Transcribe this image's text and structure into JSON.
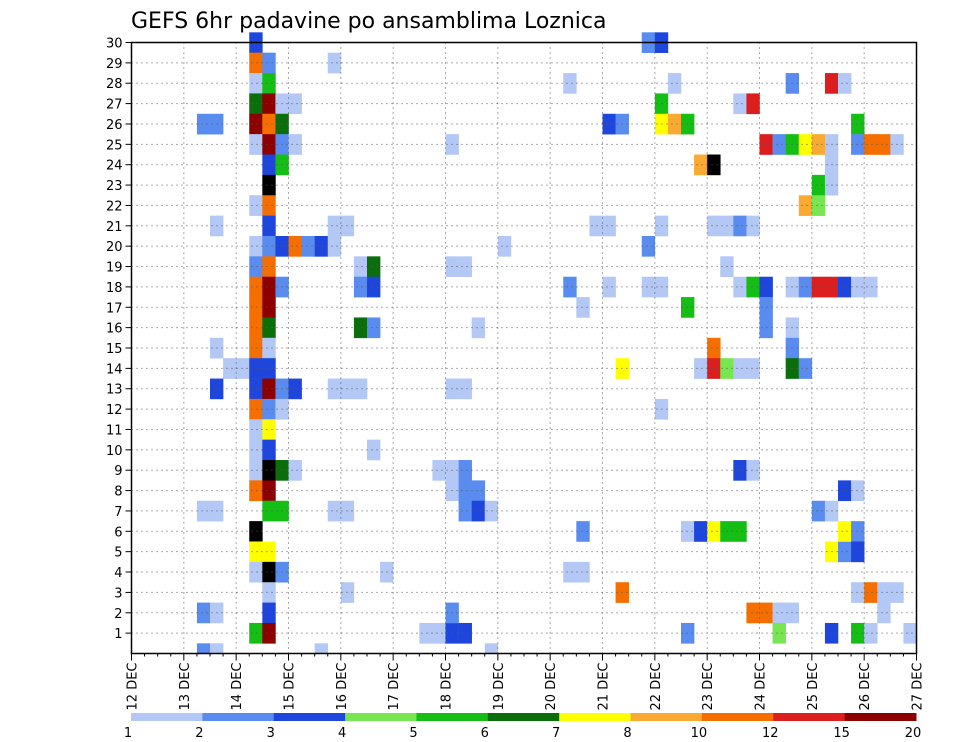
{
  "chart_data": {
    "type": "heatmap",
    "title": "GEFS 6hr padavine po ansamblima Loznica",
    "x_ticks": [
      "12 DEC",
      "13 DEC",
      "14 DEC",
      "15 DEC",
      "16 DEC",
      "17 DEC",
      "18 DEC",
      "19 DEC",
      "20 DEC",
      "21 DEC",
      "22 DEC",
      "23 DEC",
      "24 DEC",
      "25 DEC",
      "26 DEC",
      "27 DEC"
    ],
    "y_ticks": [
      "1",
      "2",
      "3",
      "4",
      "5",
      "6",
      "7",
      "8",
      "9",
      "10",
      "11",
      "12",
      "13",
      "14",
      "15",
      "16",
      "17",
      "18",
      "19",
      "20",
      "21",
      "22",
      "23",
      "24",
      "25",
      "26",
      "27",
      "28",
      "29",
      "30"
    ],
    "y_range": [
      1,
      30
    ],
    "x_range": [
      "12 DEC",
      "27 DEC"
    ],
    "grid": true,
    "time_step_hours": 6,
    "colorbar": {
      "colors": [
        "#b4c8f5",
        "#5a8cf0",
        "#1e46dc",
        "#78e650",
        "#14be14",
        "#0a6e0a",
        "#ffff00",
        "#faaa32",
        "#f56e00",
        "#dc1e1e",
        "#8c0000"
      ],
      "labels": [
        "1",
        "2",
        "3",
        "4",
        "5",
        "6",
        "7",
        "8",
        "10",
        "12",
        "15",
        "20"
      ]
    },
    "cells": [
      [
        30,
        9,
        3
      ],
      [
        29,
        9,
        9
      ],
      [
        29,
        10,
        2
      ],
      [
        29,
        15,
        1
      ],
      [
        28,
        9,
        1
      ],
      [
        28,
        10,
        5
      ],
      [
        27,
        9,
        6
      ],
      [
        27,
        10,
        11
      ],
      [
        27,
        11,
        1
      ],
      [
        27,
        12,
        1
      ],
      [
        26,
        5,
        2
      ],
      [
        26,
        6,
        2
      ],
      [
        26,
        9,
        11
      ],
      [
        26,
        10,
        9
      ],
      [
        26,
        11,
        6
      ],
      [
        25,
        9,
        1
      ],
      [
        25,
        10,
        11
      ],
      [
        25,
        11,
        2
      ],
      [
        25,
        12,
        1
      ],
      [
        24,
        10,
        3
      ],
      [
        24,
        11,
        5
      ],
      [
        23,
        10,
        12
      ],
      [
        22,
        9,
        1
      ],
      [
        22,
        10,
        9
      ],
      [
        21,
        10,
        3
      ],
      [
        20,
        9,
        1
      ],
      [
        20,
        10,
        2
      ],
      [
        20,
        11,
        3
      ],
      [
        20,
        12,
        9
      ],
      [
        19,
        9,
        2
      ],
      [
        19,
        10,
        9
      ],
      [
        18,
        9,
        9
      ],
      [
        18,
        10,
        11
      ],
      [
        18,
        11,
        2
      ],
      [
        17,
        9,
        9
      ],
      [
        17,
        10,
        11
      ],
      [
        16,
        9,
        9
      ],
      [
        16,
        10,
        6
      ],
      [
        15,
        9,
        9
      ],
      [
        15,
        10,
        1
      ],
      [
        14,
        7,
        1
      ],
      [
        14,
        8,
        1
      ],
      [
        14,
        9,
        3
      ],
      [
        14,
        10,
        3
      ],
      [
        13,
        9,
        3
      ],
      [
        13,
        10,
        11
      ],
      [
        13,
        11,
        2
      ],
      [
        13,
        12,
        3
      ],
      [
        12,
        9,
        9
      ],
      [
        12,
        10,
        2
      ],
      [
        12,
        11,
        1
      ],
      [
        11,
        9,
        1
      ],
      [
        11,
        10,
        7
      ],
      [
        10,
        9,
        1
      ],
      [
        10,
        10,
        3
      ],
      [
        9,
        9,
        1
      ],
      [
        9,
        10,
        12
      ],
      [
        9,
        11,
        6
      ],
      [
        9,
        12,
        1
      ],
      [
        8,
        9,
        9
      ],
      [
        8,
        10,
        11
      ],
      [
        7,
        10,
        5
      ],
      [
        7,
        11,
        5
      ],
      [
        6,
        9,
        12
      ],
      [
        5,
        9,
        7
      ],
      [
        5,
        10,
        7
      ],
      [
        4,
        9,
        1
      ],
      [
        4,
        10,
        12
      ],
      [
        4,
        11,
        2
      ],
      [
        3,
        10,
        1
      ],
      [
        2,
        10,
        3
      ],
      [
        1,
        9,
        5
      ],
      [
        1,
        10,
        11
      ],
      [
        28,
        41,
        1
      ],
      [
        21,
        6,
        1
      ],
      [
        15,
        6,
        1
      ],
      [
        13,
        6,
        3
      ],
      [
        7,
        5,
        1
      ],
      [
        7,
        6,
        1
      ],
      [
        2,
        5,
        2
      ],
      [
        2,
        6,
        1
      ],
      [
        0,
        5,
        2
      ],
      [
        0,
        6,
        1
      ],
      [
        0,
        14,
        1
      ],
      [
        0,
        27,
        1
      ],
      [
        20,
        13,
        2
      ],
      [
        20,
        14,
        3
      ],
      [
        20,
        15,
        1
      ],
      [
        21,
        15,
        1
      ],
      [
        21,
        16,
        1
      ],
      [
        19,
        17,
        1
      ],
      [
        19,
        18,
        6
      ],
      [
        18,
        17,
        2
      ],
      [
        18,
        18,
        3
      ],
      [
        16,
        17,
        6
      ],
      [
        16,
        18,
        2
      ],
      [
        13,
        15,
        1
      ],
      [
        13,
        16,
        1
      ],
      [
        13,
        17,
        1
      ],
      [
        10,
        18,
        1
      ],
      [
        9,
        23,
        1
      ],
      [
        9,
        24,
        1
      ],
      [
        9,
        25,
        2
      ],
      [
        8,
        24,
        1
      ],
      [
        8,
        25,
        2
      ],
      [
        8,
        26,
        2
      ],
      [
        7,
        25,
        2
      ],
      [
        7,
        26,
        3
      ],
      [
        7,
        27,
        1
      ],
      [
        7,
        15,
        1
      ],
      [
        7,
        16,
        1
      ],
      [
        4,
        19,
        1
      ],
      [
        3,
        16,
        1
      ],
      [
        1,
        22,
        1
      ],
      [
        1,
        23,
        1
      ],
      [
        1,
        24,
        3
      ],
      [
        1,
        25,
        3
      ],
      [
        25,
        24,
        1
      ],
      [
        19,
        24,
        1
      ],
      [
        19,
        25,
        1
      ],
      [
        16,
        26,
        1
      ],
      [
        13,
        24,
        1
      ],
      [
        13,
        25,
        1
      ],
      [
        2,
        24,
        2
      ],
      [
        20,
        28,
        1
      ],
      [
        28,
        33,
        1
      ],
      [
        18,
        33,
        2
      ],
      [
        17,
        34,
        1
      ],
      [
        4,
        33,
        1
      ],
      [
        4,
        34,
        1
      ],
      [
        3,
        37,
        9
      ],
      [
        26,
        36,
        3
      ],
      [
        26,
        37,
        2
      ],
      [
        21,
        35,
        1
      ],
      [
        21,
        36,
        1
      ],
      [
        20,
        39,
        2
      ],
      [
        18,
        36,
        1
      ],
      [
        14,
        37,
        7
      ],
      [
        6,
        34,
        2
      ],
      [
        30,
        39,
        2
      ],
      [
        30,
        40,
        3
      ],
      [
        27,
        40,
        5
      ],
      [
        26,
        40,
        7
      ],
      [
        26,
        41,
        8
      ],
      [
        26,
        42,
        5
      ],
      [
        21,
        40,
        1
      ],
      [
        18,
        39,
        1
      ],
      [
        18,
        40,
        1
      ],
      [
        17,
        42,
        5
      ],
      [
        12,
        40,
        1
      ],
      [
        1,
        42,
        2
      ],
      [
        27,
        46,
        1
      ],
      [
        27,
        47,
        10
      ],
      [
        25,
        48,
        10
      ],
      [
        25,
        49,
        2
      ],
      [
        25,
        50,
        5
      ],
      [
        25,
        51,
        7
      ],
      [
        25,
        52,
        8
      ],
      [
        25,
        53,
        1
      ],
      [
        24,
        43,
        8
      ],
      [
        24,
        44,
        12
      ],
      [
        21,
        44,
        1
      ],
      [
        21,
        45,
        1
      ],
      [
        21,
        46,
        2
      ],
      [
        21,
        47,
        1
      ],
      [
        19,
        45,
        1
      ],
      [
        18,
        46,
        1
      ],
      [
        18,
        47,
        5
      ],
      [
        18,
        48,
        3
      ],
      [
        18,
        50,
        1
      ],
      [
        18,
        51,
        2
      ],
      [
        18,
        52,
        10
      ],
      [
        18,
        53,
        10
      ],
      [
        18,
        54,
        3
      ],
      [
        18,
        55,
        1
      ],
      [
        18,
        56,
        1
      ],
      [
        17,
        48,
        2
      ],
      [
        16,
        48,
        2
      ],
      [
        16,
        50,
        1
      ],
      [
        15,
        44,
        9
      ],
      [
        15,
        50,
        2
      ],
      [
        14,
        43,
        1
      ],
      [
        14,
        44,
        10
      ],
      [
        14,
        45,
        4
      ],
      [
        14,
        46,
        1
      ],
      [
        14,
        47,
        1
      ],
      [
        14,
        50,
        6
      ],
      [
        14,
        51,
        2
      ],
      [
        9,
        46,
        3
      ],
      [
        9,
        47,
        1
      ],
      [
        6,
        42,
        1
      ],
      [
        6,
        43,
        3
      ],
      [
        6,
        44,
        7
      ],
      [
        6,
        45,
        5
      ],
      [
        6,
        46,
        5
      ],
      [
        5,
        53,
        7
      ],
      [
        5,
        54,
        2
      ],
      [
        2,
        47,
        9
      ],
      [
        2,
        48,
        9
      ],
      [
        2,
        49,
        1
      ],
      [
        2,
        50,
        1
      ],
      [
        3,
        55,
        1
      ],
      [
        3,
        56,
        9
      ],
      [
        3,
        57,
        1
      ],
      [
        3,
        58,
        1
      ],
      [
        2,
        57,
        1
      ],
      [
        1,
        49,
        4
      ],
      [
        1,
        53,
        3
      ],
      [
        1,
        55,
        5
      ],
      [
        1,
        56,
        1
      ],
      [
        28,
        50,
        2
      ],
      [
        28,
        53,
        10
      ],
      [
        28,
        54,
        1
      ],
      [
        26,
        55,
        5
      ],
      [
        25,
        55,
        2
      ],
      [
        25,
        56,
        9
      ],
      [
        25,
        57,
        9
      ],
      [
        25,
        58,
        1
      ],
      [
        24,
        53,
        1
      ],
      [
        23,
        52,
        5
      ],
      [
        23,
        53,
        1
      ],
      [
        22,
        51,
        8
      ],
      [
        22,
        52,
        4
      ],
      [
        8,
        54,
        3
      ],
      [
        8,
        55,
        1
      ],
      [
        7,
        52,
        2
      ],
      [
        7,
        53,
        1
      ],
      [
        6,
        54,
        7
      ],
      [
        6,
        55,
        2
      ],
      [
        5,
        55,
        3
      ],
      [
        1,
        59,
        1
      ]
    ]
  }
}
